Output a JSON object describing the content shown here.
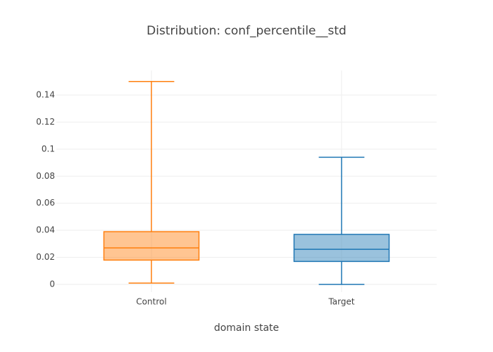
{
  "chart_data": {
    "type": "box",
    "title": "Distribution: conf_percentile__std",
    "x_label": "domain state",
    "categories": [
      "Control",
      "Target"
    ],
    "boxes": [
      {
        "color": "#ff7f0e",
        "min": 0.001,
        "q1": 0.018,
        "median": 0.027,
        "q3": 0.039,
        "max": 0.15
      },
      {
        "color": "#1f77b4",
        "min": 0,
        "q1": 0.017,
        "median": 0.026,
        "q3": 0.037,
        "max": 0.094
      }
    ],
    "ylim": [
      -0.0057,
      0.1582
    ],
    "yticks": [
      0,
      0.02,
      0.04,
      0.06,
      0.08,
      0.1,
      0.12,
      0.14
    ],
    "grid": true
  }
}
